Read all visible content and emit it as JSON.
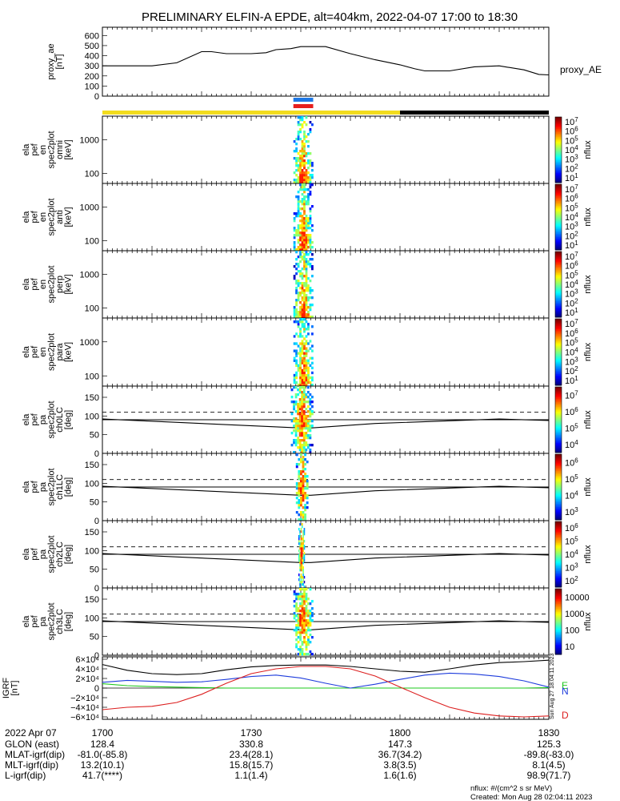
{
  "title": "PRELIMINARY ELFIN-A EPDE, alt=404km, 2022-04-07 17:00 to 18:30",
  "colors": {
    "axis": "#000000",
    "bar_yellow": "#f2dc1e",
    "bar_black": "#000000",
    "marker_blue": "#1e78e6",
    "marker_red": "#e61e1e",
    "east": "#1ec81e",
    "north": "#1e3cdc",
    "down": "#dc1e1e"
  },
  "footer": {
    "date": "2022 Apr 07",
    "row_labels": [
      "GLON (east)",
      "MLAT-igrf(dip)",
      "MLT-igrf(dip)",
      "L-igrf(dip)"
    ],
    "times": [
      "1700",
      "1730",
      "1800",
      "1830"
    ],
    "glon": [
      "128.4",
      "330.8",
      "147.3",
      "125.3"
    ],
    "mlat": [
      "-81.0(-85.8)",
      "23.4(28.1)",
      "36.7(34.2)",
      "-89.8(-83.0)"
    ],
    "mlt": [
      "13.2(10.1)",
      "15.8(15.7)",
      "3.8(3.5)",
      "8.1(4.5)"
    ],
    "lval": [
      "41.7(****)",
      "1.1(1.4)",
      "1.6(1.6)",
      "98.9(71.7)"
    ],
    "nflux_units": "nflux: #/(cm^2 s sr MeV)",
    "created": "Created: Mon Aug 28 02:04:11 2023",
    "side_stamp": "Sun Aug 27 18:04:11 2023"
  },
  "chart_data": [
    {
      "type": "line",
      "ylabel": "proxy_ae [nT]",
      "legend": "proxy_AE",
      "ylim": [
        0,
        650
      ],
      "yticks": [
        "0",
        "100",
        "200",
        "300",
        "400",
        "500",
        "600"
      ],
      "x": [
        0,
        10,
        15,
        20,
        22,
        25,
        30,
        33,
        35,
        38,
        40,
        45,
        50,
        55,
        60,
        63,
        65,
        70,
        75,
        80,
        85,
        88,
        90
      ],
      "values": [
        300,
        300,
        330,
        440,
        440,
        420,
        420,
        430,
        460,
        470,
        490,
        490,
        420,
        360,
        310,
        270,
        250,
        250,
        290,
        300,
        260,
        215,
        210
      ]
    },
    {
      "type": "heatmap",
      "ylabel": [
        "ela",
        "pef",
        "en",
        "spec2plot",
        "omni",
        "[keV]"
      ],
      "yticks": [
        "100",
        "1000"
      ],
      "cbar": "nflux",
      "cbar_ticks": [
        "10^1",
        "10^2",
        "10^3",
        "10^4",
        "10^5",
        "10^6",
        "10^7"
      ],
      "active_x": [
        38.5,
        42.5
      ]
    },
    {
      "type": "heatmap",
      "ylabel": [
        "ela",
        "pef",
        "en",
        "spec2plot",
        "anti",
        "[keV]"
      ],
      "yticks": [
        "100",
        "1000"
      ],
      "cbar": "nflux",
      "cbar_ticks": [
        "10^1",
        "10^2",
        "10^3",
        "10^4",
        "10^5",
        "10^6",
        "10^7"
      ],
      "active_x": [
        38.5,
        42.5
      ]
    },
    {
      "type": "heatmap",
      "ylabel": [
        "ela",
        "pef",
        "en",
        "spec2plot",
        "perp",
        "[keV]"
      ],
      "yticks": [
        "100",
        "1000"
      ],
      "cbar": "nflux",
      "cbar_ticks": [
        "10^1",
        "10^2",
        "10^3",
        "10^4",
        "10^5",
        "10^6",
        "10^7"
      ],
      "active_x": [
        38.5,
        42.5
      ]
    },
    {
      "type": "heatmap",
      "ylabel": [
        "ela",
        "pef",
        "en",
        "spec2plot",
        "para",
        "[keV]"
      ],
      "yticks": [
        "100",
        "1000"
      ],
      "cbar": "nflux",
      "cbar_ticks": [
        "10^1",
        "10^2",
        "10^3",
        "10^4",
        "10^5",
        "10^6",
        "10^7"
      ],
      "active_x": [
        38.5,
        42.5
      ]
    },
    {
      "type": "heatmap",
      "ylabel": [
        "ela",
        "pef",
        "pa",
        "spec2plot",
        "ch0LC",
        "[deg]"
      ],
      "yticks": [
        "0",
        "50",
        "100",
        "150"
      ],
      "ylim": [
        0,
        180
      ],
      "cbar": "nflux",
      "cbar_ticks": [
        "10^4",
        "10^5",
        "10^6",
        "10^7"
      ],
      "active_x": [
        38,
        42.5
      ]
    },
    {
      "type": "heatmap",
      "ylabel": [
        "ela",
        "pef",
        "pa",
        "spec2plot",
        "ch1LC",
        "[deg]"
      ],
      "yticks": [
        "0",
        "50",
        "100",
        "150"
      ],
      "ylim": [
        0,
        180
      ],
      "cbar": "nflux",
      "cbar_ticks": [
        "10^3",
        "10^4",
        "10^5",
        "10^6"
      ],
      "active_x": [
        39,
        41.5
      ]
    },
    {
      "type": "heatmap",
      "ylabel": [
        "ela",
        "pef",
        "pa",
        "spec2plot",
        "ch2LC",
        "[deg]"
      ],
      "yticks": [
        "0",
        "50",
        "100",
        "150"
      ],
      "ylim": [
        0,
        180
      ],
      "cbar": "nflux",
      "cbar_ticks": [
        "10^2",
        "10^3",
        "10^4",
        "10^5",
        "10^6"
      ],
      "active_x": [
        39.5,
        40.8
      ]
    },
    {
      "type": "heatmap",
      "ylabel": [
        "ela",
        "pef",
        "pa",
        "spec2plot",
        "ch3LC",
        "[deg]"
      ],
      "yticks": [
        "0",
        "50",
        "100",
        "150"
      ],
      "ylim": [
        0,
        180
      ],
      "cbar": "nflux",
      "cbar_ticks": [
        "10",
        "100",
        "1000",
        "10000"
      ],
      "active_x": [
        38.5,
        42.5
      ]
    },
    {
      "type": "line",
      "ylabel": "IGRF [nT]",
      "ylim": [
        -65000,
        65000
      ],
      "yticks": [
        "6×10⁴",
        "4×10⁴",
        "2×10⁴",
        "0",
        "−2×10⁴",
        "−4×10⁴",
        "−6×10⁴"
      ],
      "x": [
        0,
        5,
        10,
        15,
        20,
        25,
        30,
        35,
        40,
        45,
        50,
        55,
        60,
        65,
        70,
        75,
        80,
        85,
        90
      ],
      "series": [
        {
          "name": "E",
          "values": [
            9000,
            5000,
            3000,
            2000,
            1000,
            0,
            0,
            0,
            0,
            0,
            0,
            0,
            0,
            0,
            0,
            0,
            0,
            0,
            1000
          ]
        },
        {
          "name": "N",
          "values": [
            12000,
            16000,
            14000,
            12000,
            13000,
            18000,
            24000,
            27000,
            21000,
            10000,
            0,
            8000,
            18000,
            27000,
            31000,
            29000,
            24000,
            15000,
            2000
          ]
        },
        {
          "name": "D",
          "values": [
            -45000,
            -40000,
            -38000,
            -30000,
            -13000,
            10000,
            30000,
            40000,
            45000,
            45000,
            40000,
            25000,
            2000,
            -20000,
            -40000,
            -52000,
            -58000,
            -60000,
            -58000
          ]
        },
        {
          "name": "total",
          "values": [
            49000,
            37000,
            30000,
            28000,
            30000,
            38000,
            44000,
            47000,
            48000,
            48000,
            45000,
            40000,
            35000,
            33000,
            40000,
            48000,
            53000,
            55000,
            58000
          ]
        }
      ]
    }
  ]
}
